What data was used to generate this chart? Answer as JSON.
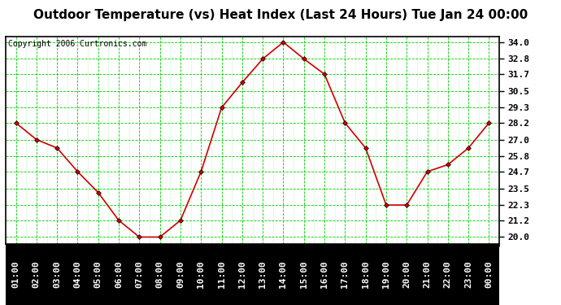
{
  "title": "Outdoor Temperature (vs) Heat Index (Last 24 Hours) Tue Jan 24 00:00",
  "copyright": "Copyright 2006 Curtronics.com",
  "x_labels": [
    "01:00",
    "02:00",
    "03:00",
    "04:00",
    "05:00",
    "06:00",
    "07:00",
    "08:00",
    "09:00",
    "10:00",
    "11:00",
    "12:00",
    "13:00",
    "14:00",
    "15:00",
    "16:00",
    "17:00",
    "18:00",
    "19:00",
    "20:00",
    "21:00",
    "22:00",
    "23:00",
    "00:00"
  ],
  "y_values": [
    28.2,
    27.0,
    26.4,
    24.7,
    23.2,
    21.2,
    20.0,
    20.0,
    21.2,
    24.7,
    29.3,
    31.1,
    32.8,
    34.0,
    32.8,
    31.7,
    28.2,
    26.4,
    22.3,
    22.3,
    24.7,
    25.2,
    26.4,
    28.2
  ],
  "y_ticks": [
    20.0,
    21.2,
    22.3,
    23.5,
    24.7,
    25.8,
    27.0,
    28.2,
    29.3,
    30.5,
    31.7,
    32.8,
    34.0
  ],
  "y_min": 19.5,
  "y_max": 34.4,
  "line_color": "#cc0000",
  "marker_color": "#000000",
  "bg_color": "#ffffff",
  "grid_color": "#00cc00",
  "border_color": "#000000",
  "title_fontsize": 11,
  "copyright_fontsize": 7,
  "tick_fontsize": 8,
  "xlabel_bg": "#000000",
  "xlabel_fg": "#ffffff"
}
